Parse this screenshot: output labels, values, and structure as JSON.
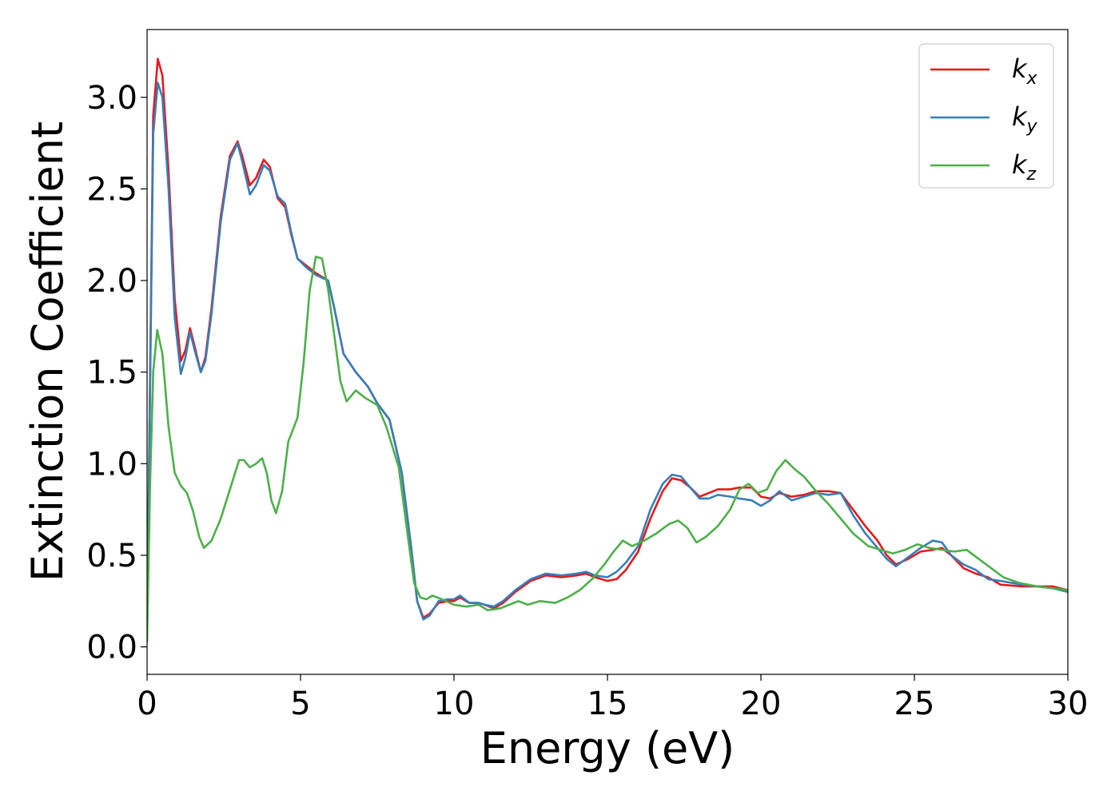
{
  "chart_data": {
    "type": "line",
    "title": "",
    "xlabel": "Energy (eV)",
    "ylabel": "Extinction Coefficient",
    "xlim": [
      0,
      30
    ],
    "ylim": [
      -0.15,
      3.37
    ],
    "grid": false,
    "legend_position": "top-right",
    "xticks": [
      0,
      5,
      10,
      15,
      20,
      25,
      30
    ],
    "xtick_labels": [
      "0",
      "5",
      "10",
      "15",
      "20",
      "25",
      "30"
    ],
    "yticks": [
      0.0,
      0.5,
      1.0,
      1.5,
      2.0,
      2.5,
      3.0
    ],
    "ytick_labels": [
      "0.0",
      "0.5",
      "1.0",
      "1.5",
      "2.0",
      "2.5",
      "3.0"
    ],
    "series": [
      {
        "name": "k",
        "subscript": "x",
        "color": "#e41a1c",
        "points": [
          [
            0,
            0.05
          ],
          [
            0.1,
            1.5
          ],
          [
            0.2,
            2.9
          ],
          [
            0.35,
            3.21
          ],
          [
            0.5,
            3.12
          ],
          [
            0.7,
            2.6
          ],
          [
            0.9,
            1.9
          ],
          [
            1.1,
            1.56
          ],
          [
            1.25,
            1.62
          ],
          [
            1.4,
            1.74
          ],
          [
            1.55,
            1.64
          ],
          [
            1.75,
            1.5
          ],
          [
            1.9,
            1.58
          ],
          [
            2.1,
            1.85
          ],
          [
            2.4,
            2.35
          ],
          [
            2.7,
            2.68
          ],
          [
            2.95,
            2.76
          ],
          [
            3.1,
            2.68
          ],
          [
            3.35,
            2.52
          ],
          [
            3.55,
            2.56
          ],
          [
            3.8,
            2.66
          ],
          [
            4.0,
            2.62
          ],
          [
            4.25,
            2.45
          ],
          [
            4.5,
            2.4
          ],
          [
            4.7,
            2.25
          ],
          [
            4.9,
            2.12
          ],
          [
            5.2,
            2.08
          ],
          [
            5.5,
            2.04
          ],
          [
            5.9,
            2.0
          ],
          [
            6.1,
            1.85
          ],
          [
            6.4,
            1.6
          ],
          [
            6.8,
            1.5
          ],
          [
            7.2,
            1.42
          ],
          [
            7.5,
            1.33
          ],
          [
            7.9,
            1.24
          ],
          [
            8.3,
            0.95
          ],
          [
            8.6,
            0.55
          ],
          [
            8.8,
            0.25
          ],
          [
            9.0,
            0.16
          ],
          [
            9.2,
            0.18
          ],
          [
            9.5,
            0.24
          ],
          [
            9.8,
            0.25
          ],
          [
            10.0,
            0.25
          ],
          [
            10.2,
            0.27
          ],
          [
            10.5,
            0.24
          ],
          [
            10.8,
            0.24
          ],
          [
            11.0,
            0.23
          ],
          [
            11.3,
            0.21
          ],
          [
            11.6,
            0.24
          ],
          [
            12.0,
            0.3
          ],
          [
            12.5,
            0.36
          ],
          [
            13.0,
            0.39
          ],
          [
            13.5,
            0.38
          ],
          [
            14.0,
            0.39
          ],
          [
            14.3,
            0.4
          ],
          [
            14.6,
            0.38
          ],
          [
            15.0,
            0.36
          ],
          [
            15.3,
            0.37
          ],
          [
            15.6,
            0.42
          ],
          [
            16.0,
            0.52
          ],
          [
            16.4,
            0.7
          ],
          [
            16.8,
            0.85
          ],
          [
            17.1,
            0.92
          ],
          [
            17.4,
            0.91
          ],
          [
            17.7,
            0.87
          ],
          [
            18.0,
            0.82
          ],
          [
            18.3,
            0.84
          ],
          [
            18.6,
            0.86
          ],
          [
            19.0,
            0.86
          ],
          [
            19.3,
            0.87
          ],
          [
            19.7,
            0.87
          ],
          [
            20.0,
            0.82
          ],
          [
            20.3,
            0.81
          ],
          [
            20.6,
            0.84
          ],
          [
            21.0,
            0.82
          ],
          [
            21.4,
            0.83
          ],
          [
            21.8,
            0.85
          ],
          [
            22.2,
            0.85
          ],
          [
            22.6,
            0.84
          ],
          [
            23.0,
            0.75
          ],
          [
            23.4,
            0.66
          ],
          [
            23.8,
            0.58
          ],
          [
            24.1,
            0.5
          ],
          [
            24.4,
            0.45
          ],
          [
            24.8,
            0.48
          ],
          [
            25.2,
            0.52
          ],
          [
            25.6,
            0.53
          ],
          [
            25.9,
            0.54
          ],
          [
            26.2,
            0.5
          ],
          [
            26.6,
            0.43
          ],
          [
            27.0,
            0.4
          ],
          [
            27.4,
            0.38
          ],
          [
            27.8,
            0.34
          ],
          [
            28.5,
            0.33
          ],
          [
            29.0,
            0.33
          ],
          [
            29.5,
            0.33
          ],
          [
            30.0,
            0.31
          ]
        ]
      },
      {
        "name": "k",
        "subscript": "y",
        "color": "#377eb8",
        "points": [
          [
            0,
            0.05
          ],
          [
            0.1,
            1.45
          ],
          [
            0.2,
            2.8
          ],
          [
            0.35,
            3.08
          ],
          [
            0.5,
            3.0
          ],
          [
            0.7,
            2.5
          ],
          [
            0.9,
            1.8
          ],
          [
            1.1,
            1.49
          ],
          [
            1.25,
            1.58
          ],
          [
            1.4,
            1.72
          ],
          [
            1.55,
            1.62
          ],
          [
            1.75,
            1.5
          ],
          [
            1.9,
            1.56
          ],
          [
            2.1,
            1.82
          ],
          [
            2.4,
            2.32
          ],
          [
            2.7,
            2.66
          ],
          [
            2.95,
            2.75
          ],
          [
            3.1,
            2.65
          ],
          [
            3.35,
            2.47
          ],
          [
            3.55,
            2.52
          ],
          [
            3.8,
            2.63
          ],
          [
            4.0,
            2.6
          ],
          [
            4.25,
            2.46
          ],
          [
            4.5,
            2.42
          ],
          [
            4.7,
            2.26
          ],
          [
            4.9,
            2.12
          ],
          [
            5.2,
            2.07
          ],
          [
            5.5,
            2.03
          ],
          [
            5.9,
            2.0
          ],
          [
            6.1,
            1.85
          ],
          [
            6.4,
            1.6
          ],
          [
            6.8,
            1.5
          ],
          [
            7.2,
            1.42
          ],
          [
            7.5,
            1.33
          ],
          [
            7.9,
            1.24
          ],
          [
            8.3,
            0.95
          ],
          [
            8.6,
            0.55
          ],
          [
            8.8,
            0.25
          ],
          [
            9.0,
            0.15
          ],
          [
            9.2,
            0.17
          ],
          [
            9.5,
            0.25
          ],
          [
            9.8,
            0.26
          ],
          [
            10.0,
            0.26
          ],
          [
            10.2,
            0.28
          ],
          [
            10.5,
            0.24
          ],
          [
            10.8,
            0.24
          ],
          [
            11.0,
            0.23
          ],
          [
            11.3,
            0.22
          ],
          [
            11.6,
            0.25
          ],
          [
            12.0,
            0.31
          ],
          [
            12.5,
            0.37
          ],
          [
            13.0,
            0.4
          ],
          [
            13.5,
            0.39
          ],
          [
            14.0,
            0.4
          ],
          [
            14.3,
            0.41
          ],
          [
            14.6,
            0.39
          ],
          [
            15.0,
            0.38
          ],
          [
            15.3,
            0.41
          ],
          [
            15.6,
            0.46
          ],
          [
            16.0,
            0.55
          ],
          [
            16.4,
            0.75
          ],
          [
            16.8,
            0.89
          ],
          [
            17.1,
            0.94
          ],
          [
            17.4,
            0.93
          ],
          [
            17.7,
            0.87
          ],
          [
            18.0,
            0.81
          ],
          [
            18.3,
            0.81
          ],
          [
            18.6,
            0.83
          ],
          [
            19.0,
            0.82
          ],
          [
            19.3,
            0.81
          ],
          [
            19.7,
            0.8
          ],
          [
            20.0,
            0.77
          ],
          [
            20.3,
            0.8
          ],
          [
            20.6,
            0.85
          ],
          [
            21.0,
            0.8
          ],
          [
            21.4,
            0.82
          ],
          [
            21.8,
            0.84
          ],
          [
            22.2,
            0.83
          ],
          [
            22.6,
            0.84
          ],
          [
            23.0,
            0.72
          ],
          [
            23.4,
            0.62
          ],
          [
            23.8,
            0.54
          ],
          [
            24.1,
            0.48
          ],
          [
            24.4,
            0.44
          ],
          [
            24.8,
            0.49
          ],
          [
            25.2,
            0.54
          ],
          [
            25.6,
            0.58
          ],
          [
            25.9,
            0.57
          ],
          [
            26.2,
            0.5
          ],
          [
            26.6,
            0.45
          ],
          [
            27.0,
            0.42
          ],
          [
            27.4,
            0.37
          ],
          [
            27.8,
            0.36
          ],
          [
            28.5,
            0.34
          ],
          [
            29.0,
            0.33
          ],
          [
            29.5,
            0.32
          ],
          [
            30.0,
            0.3
          ]
        ]
      },
      {
        "name": "k",
        "subscript": "z",
        "color": "#4daf4a",
        "points": [
          [
            0,
            0.03
          ],
          [
            0.1,
            0.9
          ],
          [
            0.2,
            1.5
          ],
          [
            0.33,
            1.73
          ],
          [
            0.5,
            1.6
          ],
          [
            0.7,
            1.2
          ],
          [
            0.9,
            0.95
          ],
          [
            1.1,
            0.88
          ],
          [
            1.3,
            0.84
          ],
          [
            1.5,
            0.74
          ],
          [
            1.7,
            0.6
          ],
          [
            1.85,
            0.54
          ],
          [
            2.1,
            0.58
          ],
          [
            2.4,
            0.7
          ],
          [
            2.7,
            0.86
          ],
          [
            3.0,
            1.02
          ],
          [
            3.15,
            1.02
          ],
          [
            3.35,
            0.98
          ],
          [
            3.55,
            1.0
          ],
          [
            3.75,
            1.03
          ],
          [
            3.9,
            0.95
          ],
          [
            4.05,
            0.8
          ],
          [
            4.2,
            0.73
          ],
          [
            4.4,
            0.85
          ],
          [
            4.6,
            1.12
          ],
          [
            4.9,
            1.25
          ],
          [
            5.1,
            1.55
          ],
          [
            5.3,
            1.95
          ],
          [
            5.5,
            2.13
          ],
          [
            5.7,
            2.12
          ],
          [
            5.9,
            1.95
          ],
          [
            6.1,
            1.7
          ],
          [
            6.3,
            1.45
          ],
          [
            6.5,
            1.34
          ],
          [
            6.8,
            1.4
          ],
          [
            7.1,
            1.36
          ],
          [
            7.5,
            1.32
          ],
          [
            7.8,
            1.2
          ],
          [
            8.2,
            0.98
          ],
          [
            8.5,
            0.6
          ],
          [
            8.7,
            0.35
          ],
          [
            8.9,
            0.27
          ],
          [
            9.1,
            0.26
          ],
          [
            9.3,
            0.28
          ],
          [
            9.6,
            0.26
          ],
          [
            10.0,
            0.23
          ],
          [
            10.4,
            0.22
          ],
          [
            10.8,
            0.23
          ],
          [
            11.1,
            0.2
          ],
          [
            11.5,
            0.21
          ],
          [
            11.8,
            0.23
          ],
          [
            12.1,
            0.25
          ],
          [
            12.4,
            0.23
          ],
          [
            12.8,
            0.25
          ],
          [
            13.3,
            0.24
          ],
          [
            13.7,
            0.27
          ],
          [
            14.1,
            0.31
          ],
          [
            14.5,
            0.37
          ],
          [
            14.9,
            0.45
          ],
          [
            15.2,
            0.52
          ],
          [
            15.5,
            0.58
          ],
          [
            15.8,
            0.55
          ],
          [
            16.2,
            0.58
          ],
          [
            16.6,
            0.62
          ],
          [
            17.0,
            0.67
          ],
          [
            17.3,
            0.69
          ],
          [
            17.6,
            0.65
          ],
          [
            17.9,
            0.57
          ],
          [
            18.2,
            0.6
          ],
          [
            18.6,
            0.66
          ],
          [
            19.0,
            0.75
          ],
          [
            19.3,
            0.86
          ],
          [
            19.6,
            0.89
          ],
          [
            19.9,
            0.84
          ],
          [
            20.2,
            0.86
          ],
          [
            20.5,
            0.96
          ],
          [
            20.8,
            1.02
          ],
          [
            21.1,
            0.97
          ],
          [
            21.4,
            0.93
          ],
          [
            21.8,
            0.85
          ],
          [
            22.2,
            0.78
          ],
          [
            22.6,
            0.7
          ],
          [
            23.0,
            0.62
          ],
          [
            23.5,
            0.55
          ],
          [
            23.9,
            0.53
          ],
          [
            24.3,
            0.51
          ],
          [
            24.7,
            0.53
          ],
          [
            25.1,
            0.56
          ],
          [
            25.5,
            0.54
          ],
          [
            25.9,
            0.53
          ],
          [
            26.3,
            0.52
          ],
          [
            26.7,
            0.53
          ],
          [
            27.1,
            0.48
          ],
          [
            27.5,
            0.43
          ],
          [
            27.9,
            0.38
          ],
          [
            28.4,
            0.35
          ],
          [
            29.0,
            0.33
          ],
          [
            29.5,
            0.32
          ],
          [
            30.0,
            0.31
          ]
        ]
      }
    ]
  }
}
